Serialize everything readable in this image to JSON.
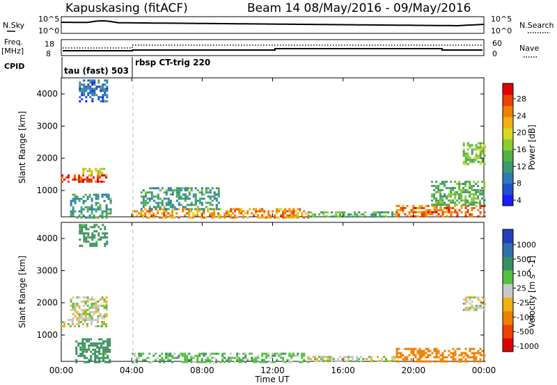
{
  "header": {
    "station": "Kapuskasing (fitACF)",
    "beam_info": "Beam 14 08/May/2016 - 09/May/2016"
  },
  "strip_panels": {
    "nsky_label": "N.Sky",
    "nsky_ticks": [
      "10^5",
      "10^0"
    ],
    "nsearch_label": "N.Search",
    "freq_label": "Freq.",
    "freq_unit": "[MHz]",
    "freq_ticks": [
      "18",
      "8"
    ],
    "nave_label": "Nave",
    "nave_ticks": [
      "60",
      "0"
    ],
    "cpid_label": "CPID",
    "cpid_segments": [
      {
        "label": "tau (fast) 503",
        "start_hour": 0,
        "end_hour": 4
      },
      {
        "label": "rbsp CT-trig 220",
        "start_hour": 4,
        "end_hour": 24
      }
    ],
    "colors": {
      "main_trace": "#000000",
      "dotted_trace": "#000000"
    }
  },
  "chart_data": [
    {
      "type": "heatmap",
      "panel": "power",
      "ylabel": "Slant Range [km]",
      "ylim": [
        180,
        4500
      ],
      "yticks": [
        1000,
        2000,
        3000,
        4000
      ],
      "colorbar_label": "Power [dB]",
      "colorbar_ticks": [
        "28",
        "24",
        "20",
        "16",
        "12",
        "8",
        "4"
      ],
      "colorbar_range": [
        0,
        30
      ],
      "colorscale": [
        "#1a1aff",
        "#2050d0",
        "#2a7ab8",
        "#3a9a70",
        "#55b045",
        "#8ccc30",
        "#d8d820",
        "#f0b010",
        "#f08000",
        "#ee4000",
        "#e00000"
      ],
      "regions": [
        {
          "x": [
            0.0,
            2.6
          ],
          "y": [
            1300,
            1500
          ],
          "level": 26
        },
        {
          "x": [
            1.2,
            2.6
          ],
          "y": [
            1500,
            1700
          ],
          "level": 18
        },
        {
          "x": [
            0.5,
            2.8
          ],
          "y": [
            180,
            900
          ],
          "level": 10
        },
        {
          "x": [
            4.0,
            14.0
          ],
          "y": [
            180,
            450
          ],
          "level": 22
        },
        {
          "x": [
            4.5,
            9.0
          ],
          "y": [
            450,
            1100
          ],
          "level": 10
        },
        {
          "x": [
            14.0,
            19.0
          ],
          "y": [
            180,
            350
          ],
          "level": 12
        },
        {
          "x": [
            19.0,
            24.0
          ],
          "y": [
            180,
            550
          ],
          "level": 24
        },
        {
          "x": [
            21.0,
            24.0
          ],
          "y": [
            550,
            1300
          ],
          "level": 12
        },
        {
          "x": [
            22.8,
            24.0
          ],
          "y": [
            1800,
            2500
          ],
          "level": 14
        },
        {
          "x": [
            1.0,
            2.6
          ],
          "y": [
            3800,
            4450
          ],
          "level": 6
        }
      ]
    },
    {
      "type": "heatmap",
      "panel": "velocity",
      "ylabel": "Slant Range [km]",
      "ylim": [
        180,
        4500
      ],
      "yticks": [
        1000,
        2000,
        3000,
        4000
      ],
      "colorbar_label": "Velocity [m s^-1]",
      "colorbar_ticks": [
        "1000",
        "500",
        "100",
        "25",
        "-25",
        "-100",
        "-500",
        "-1000"
      ],
      "colorscale": [
        "#2040c0",
        "#3070a8",
        "#3a9060",
        "#55c040",
        "#c8c8c8",
        "#f0b010",
        "#f08000",
        "#ee4000",
        "#e00000"
      ],
      "regions": [
        {
          "x": [
            0.0,
            2.6
          ],
          "y": [
            1300,
            1500
          ],
          "level": 0
        },
        {
          "x": [
            0.5,
            2.6
          ],
          "y": [
            1500,
            2200
          ],
          "level": 0
        },
        {
          "x": [
            0.8,
            2.8
          ],
          "y": [
            180,
            900
          ],
          "level": 150
        },
        {
          "x": [
            4.0,
            14.0
          ],
          "y": [
            180,
            450
          ],
          "level": 60
        },
        {
          "x": [
            14.0,
            19.0
          ],
          "y": [
            180,
            350
          ],
          "level": 0
        },
        {
          "x": [
            19.0,
            24.0
          ],
          "y": [
            180,
            600
          ],
          "level": -300
        },
        {
          "x": [
            22.8,
            24.0
          ],
          "y": [
            1800,
            2200
          ],
          "level": 0
        },
        {
          "x": [
            1.0,
            2.6
          ],
          "y": [
            3800,
            4450
          ],
          "level": 150
        }
      ]
    }
  ],
  "time_axis": {
    "label": "Time UT",
    "range_hours": [
      0,
      24
    ],
    "ticks": [
      {
        "hour": 0,
        "label": "00:00"
      },
      {
        "hour": 4,
        "label": "04:00"
      },
      {
        "hour": 8,
        "label": "08:00"
      },
      {
        "hour": 12,
        "label": "12:00"
      },
      {
        "hour": 16,
        "label": "16:00"
      },
      {
        "hour": 20,
        "label": "20:00"
      },
      {
        "hour": 24,
        "label": "00:00"
      }
    ]
  }
}
